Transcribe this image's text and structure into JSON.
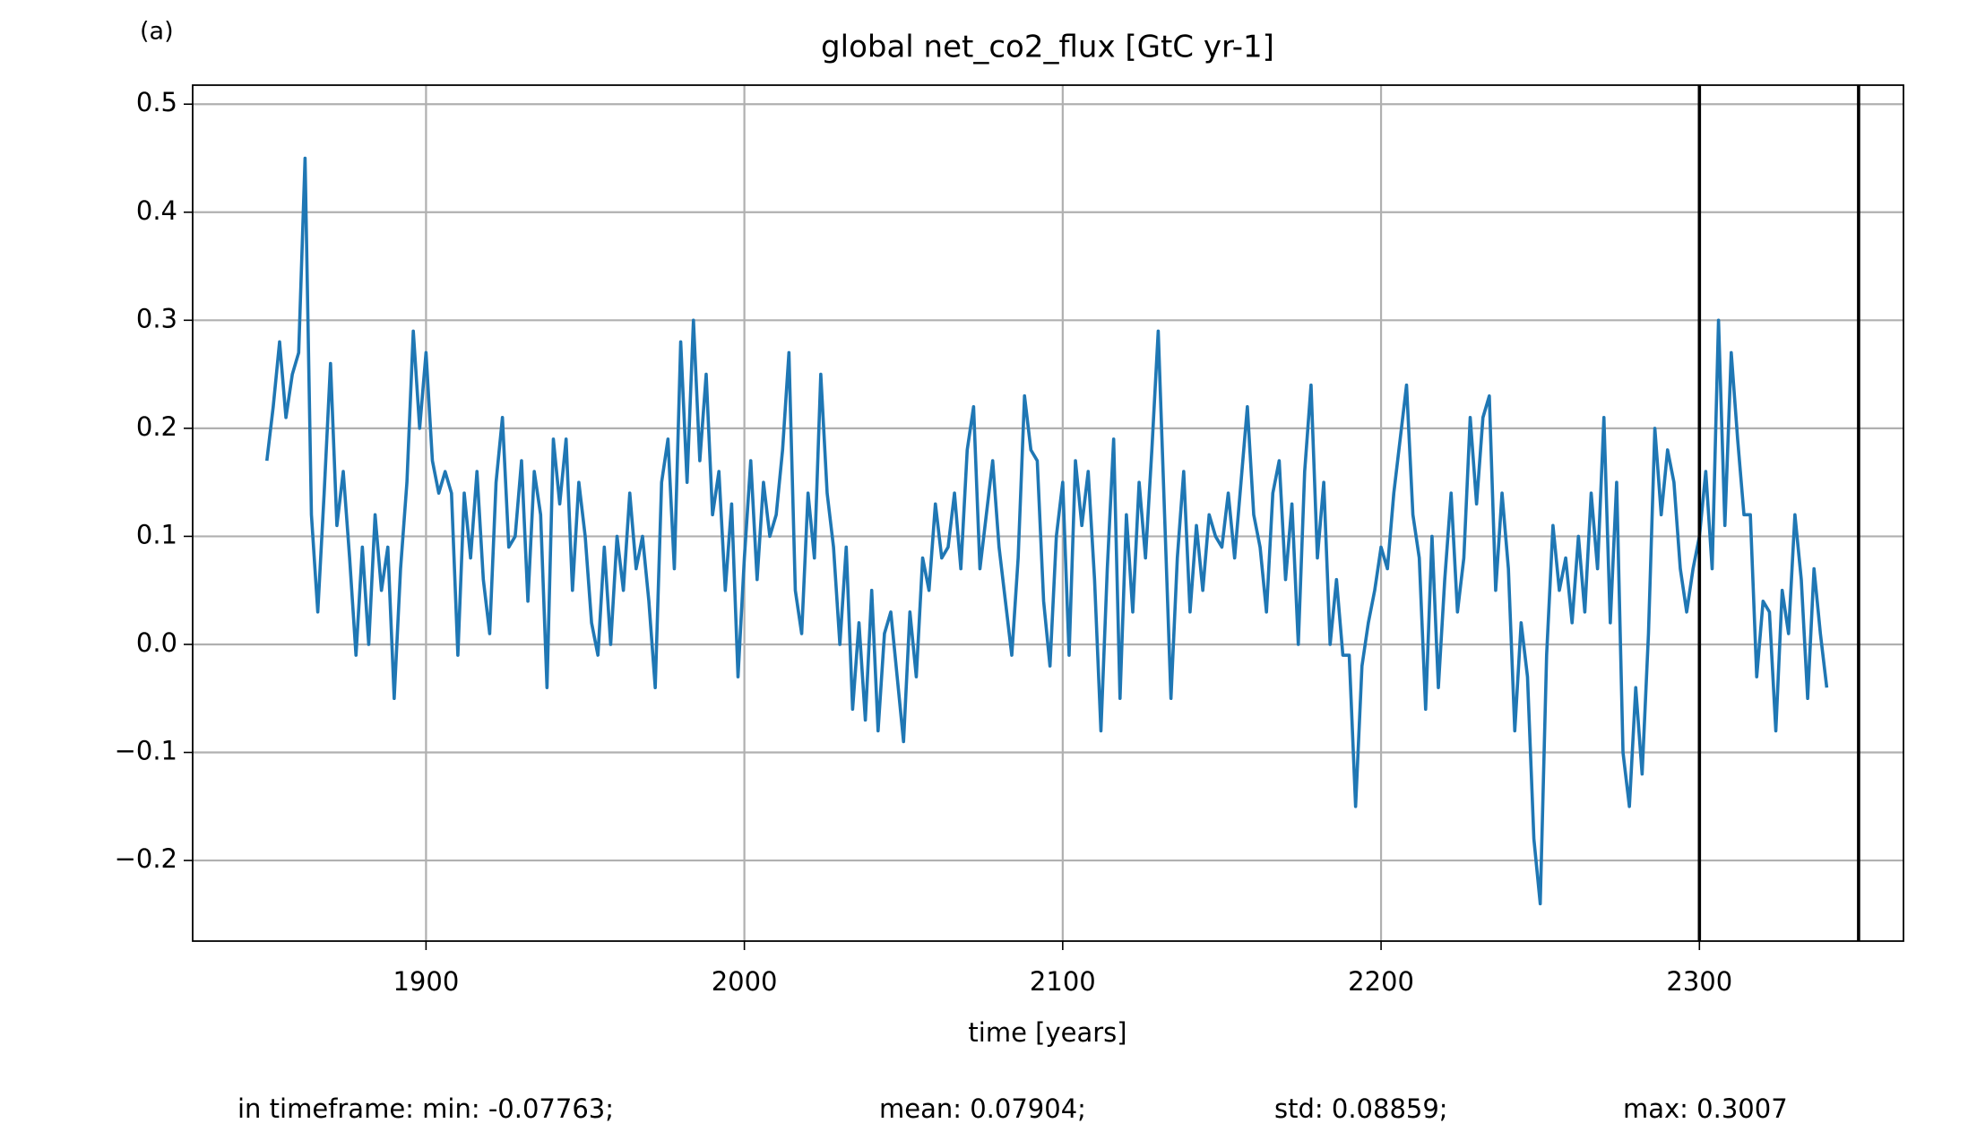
{
  "chart_data": {
    "type": "line",
    "panel_label": "(a)",
    "title": "global net_co2_flux [GtC yr-1]",
    "xlabel": "time [years]",
    "footer": [
      "in timeframe: min: -0.07763;",
      "mean: 0.07904;",
      "std: 0.08859;",
      "max: 0.3007"
    ],
    "color": "#1f77b4",
    "grid": true,
    "xlim": [
      1826.7,
      2364.1
    ],
    "ylim": [
      -0.2746,
      0.5176
    ],
    "xticks": [
      1900,
      2000,
      2100,
      2200,
      2300
    ],
    "yticks": [
      {
        "value": -0.2,
        "label": "−0.2"
      },
      {
        "value": -0.1,
        "label": "−0.1"
      },
      {
        "value": 0,
        "label": "0.0"
      },
      0.1,
      0.2,
      0.3,
      0.4,
      0.5
    ],
    "vlines": [
      2300,
      2350
    ],
    "vline_color": "#000000",
    "x": [
      1850,
      1852,
      1854,
      1856,
      1858,
      1860,
      1862,
      1864,
      1866,
      1868,
      1870,
      1872,
      1874,
      1876,
      1878,
      1880,
      1882,
      1884,
      1886,
      1888,
      1890,
      1892,
      1894,
      1896,
      1898,
      1900,
      1902,
      1904,
      1906,
      1908,
      1910,
      1912,
      1914,
      1916,
      1918,
      1920,
      1922,
      1924,
      1926,
      1928,
      1930,
      1932,
      1934,
      1936,
      1938,
      1940,
      1942,
      1944,
      1946,
      1948,
      1950,
      1952,
      1954,
      1956,
      1958,
      1960,
      1962,
      1964,
      1966,
      1968,
      1970,
      1972,
      1974,
      1976,
      1978,
      1980,
      1982,
      1984,
      1986,
      1988,
      1990,
      1992,
      1994,
      1996,
      1998,
      2000,
      2002,
      2004,
      2006,
      2008,
      2010,
      2012,
      2014,
      2016,
      2018,
      2020,
      2022,
      2024,
      2026,
      2028,
      2030,
      2032,
      2034,
      2036,
      2038,
      2040,
      2042,
      2044,
      2046,
      2048,
      2050,
      2052,
      2054,
      2056,
      2058,
      2060,
      2062,
      2064,
      2066,
      2068,
      2070,
      2072,
      2074,
      2076,
      2078,
      2080,
      2082,
      2084,
      2086,
      2088,
      2090,
      2092,
      2094,
      2096,
      2098,
      2100,
      2102,
      2104,
      2106,
      2108,
      2110,
      2112,
      2114,
      2116,
      2118,
      2120,
      2122,
      2124,
      2126,
      2128,
      2130,
      2132,
      2134,
      2136,
      2138,
      2140,
      2142,
      2144,
      2146,
      2148,
      2150,
      2152,
      2154,
      2156,
      2158,
      2160,
      2162,
      2164,
      2166,
      2168,
      2170,
      2172,
      2174,
      2176,
      2178,
      2180,
      2182,
      2184,
      2186,
      2188,
      2190,
      2192,
      2194,
      2196,
      2198,
      2200,
      2202,
      2204,
      2206,
      2208,
      2210,
      2212,
      2214,
      2216,
      2218,
      2220,
      2222,
      2224,
      2226,
      2228,
      2230,
      2232,
      2234,
      2236,
      2238,
      2240,
      2242,
      2244,
      2246,
      2248,
      2250,
      2252,
      2254,
      2256,
      2258,
      2260,
      2262,
      2264,
      2266,
      2268,
      2270,
      2272,
      2274,
      2276,
      2278,
      2280,
      2282,
      2284,
      2286,
      2288,
      2290,
      2292,
      2294,
      2296,
      2298,
      2300,
      2302,
      2304,
      2306,
      2308,
      2310,
      2312,
      2314,
      2316,
      2318,
      2320,
      2322,
      2324,
      2326,
      2328,
      2330,
      2332,
      2334,
      2336,
      2338,
      2340
    ],
    "values": [
      0.17,
      0.22,
      0.28,
      0.21,
      0.25,
      0.27,
      0.45,
      0.12,
      0.03,
      0.14,
      0.26,
      0.11,
      0.16,
      0.08,
      -0.01,
      0.09,
      0.0,
      0.12,
      0.05,
      0.09,
      -0.05,
      0.07,
      0.15,
      0.29,
      0.2,
      0.27,
      0.17,
      0.14,
      0.16,
      0.14,
      -0.01,
      0.14,
      0.08,
      0.16,
      0.06,
      0.01,
      0.15,
      0.21,
      0.09,
      0.1,
      0.17,
      0.04,
      0.16,
      0.12,
      -0.04,
      0.19,
      0.13,
      0.19,
      0.05,
      0.15,
      0.1,
      0.02,
      -0.01,
      0.09,
      0.0,
      0.1,
      0.05,
      0.14,
      0.07,
      0.1,
      0.04,
      -0.04,
      0.15,
      0.19,
      0.07,
      0.28,
      0.15,
      0.3,
      0.17,
      0.25,
      0.12,
      0.16,
      0.05,
      0.13,
      -0.03,
      0.08,
      0.17,
      0.06,
      0.15,
      0.1,
      0.12,
      0.18,
      0.27,
      0.05,
      0.01,
      0.14,
      0.08,
      0.25,
      0.14,
      0.09,
      0.0,
      0.09,
      -0.06,
      0.02,
      -0.07,
      0.05,
      -0.08,
      0.01,
      0.03,
      -0.03,
      -0.09,
      0.03,
      -0.03,
      0.08,
      0.05,
      0.13,
      0.08,
      0.09,
      0.14,
      0.07,
      0.18,
      0.22,
      0.07,
      0.12,
      0.17,
      0.09,
      0.04,
      -0.01,
      0.08,
      0.23,
      0.18,
      0.17,
      0.04,
      -0.02,
      0.1,
      0.15,
      -0.01,
      0.17,
      0.11,
      0.16,
      0.06,
      -0.08,
      0.07,
      0.19,
      -0.05,
      0.12,
      0.03,
      0.15,
      0.08,
      0.18,
      0.29,
      0.12,
      -0.05,
      0.08,
      0.16,
      0.03,
      0.11,
      0.05,
      0.12,
      0.1,
      0.09,
      0.14,
      0.08,
      0.15,
      0.22,
      0.12,
      0.09,
      0.03,
      0.14,
      0.17,
      0.06,
      0.13,
      0.0,
      0.16,
      0.24,
      0.08,
      0.15,
      0.0,
      0.06,
      -0.01,
      -0.01,
      -0.15,
      -0.02,
      0.02,
      0.05,
      0.09,
      0.07,
      0.14,
      0.19,
      0.24,
      0.12,
      0.08,
      -0.06,
      0.1,
      -0.04,
      0.06,
      0.14,
      0.03,
      0.08,
      0.21,
      0.13,
      0.21,
      0.23,
      0.05,
      0.14,
      0.07,
      -0.08,
      0.02,
      -0.03,
      -0.18,
      -0.24,
      -0.01,
      0.11,
      0.05,
      0.08,
      0.02,
      0.1,
      0.03,
      0.14,
      0.07,
      0.21,
      0.02,
      0.15,
      -0.1,
      -0.15,
      -0.04,
      -0.12,
      0.01,
      0.2,
      0.12,
      0.18,
      0.15,
      0.07,
      0.03,
      0.07,
      0.1,
      0.16,
      0.07,
      0.3,
      0.11,
      0.27,
      0.19,
      0.12,
      0.12,
      -0.03,
      0.04,
      0.03,
      -0.08,
      0.05,
      0.01,
      0.12,
      0.06,
      -0.05,
      0.07,
      0.01,
      -0.04
    ]
  }
}
